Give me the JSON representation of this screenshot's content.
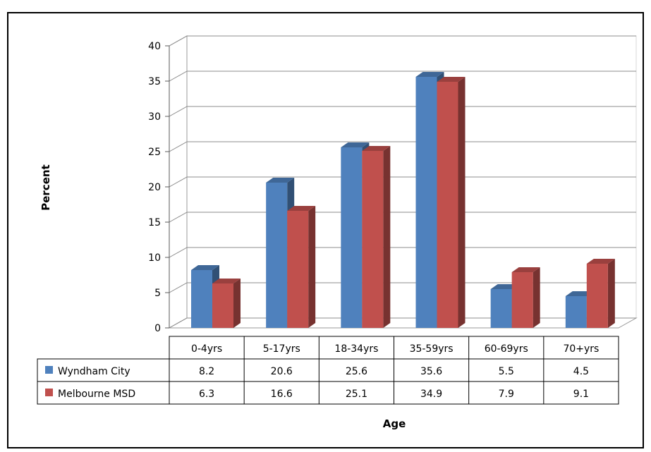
{
  "chart_data": {
    "type": "bar",
    "title": "",
    "xlabel": "Age",
    "ylabel": "Percent",
    "categories": [
      "0-4yrs",
      "5-17yrs",
      "18-34yrs",
      "35-59yrs",
      "60-69yrs",
      "70+yrs"
    ],
    "series": [
      {
        "name": "Wyndham City",
        "values": [
          8.2,
          20.6,
          25.6,
          35.6,
          5.5,
          4.5
        ],
        "color": "#4F81BD"
      },
      {
        "name": "Melbourne MSD",
        "values": [
          6.3,
          16.6,
          25.1,
          34.9,
          7.9,
          9.1
        ],
        "color": "#C0504D"
      }
    ],
    "ylim": [
      0,
      40
    ],
    "yticks": [
      0,
      5,
      10,
      15,
      20,
      25,
      30,
      35,
      40
    ],
    "grid": true,
    "style": "3d-clustered-column",
    "data_table": true
  }
}
